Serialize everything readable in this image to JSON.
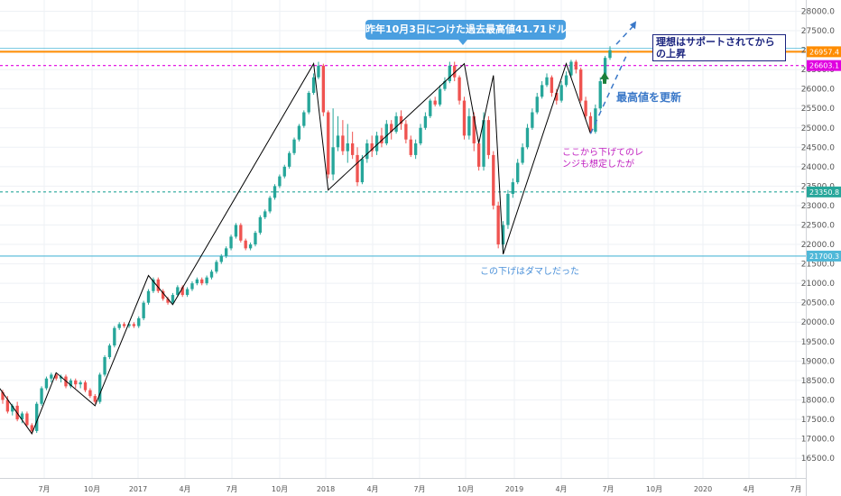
{
  "chart_data": {
    "type": "candlestick",
    "y_axis": {
      "side": "right",
      "range": [
        16200,
        28150
      ],
      "ticks": [
        "28000.0",
        "27500.0",
        "27000.0",
        "26500.0",
        "26000.0",
        "25500.0",
        "25000.0",
        "24500.0",
        "24000.0",
        "23500.0",
        "23000.0",
        "22500.0",
        "22000.0",
        "21500.0",
        "21000.0",
        "20500.0",
        "20000.0",
        "19500.0",
        "19000.0",
        "18500.0",
        "18000.0",
        "17500.0",
        "17000.0",
        "16500.0"
      ]
    },
    "x_axis": {
      "labels": [
        "7月",
        "10月",
        "2017",
        "4月",
        "7月",
        "10月",
        "2018",
        "4月",
        "7月",
        "10月",
        "2019",
        "4月",
        "7月",
        "10月",
        "2020",
        "4月",
        "7月"
      ]
    },
    "candles": [
      [
        18200,
        18000,
        18260,
        17900
      ],
      [
        18000,
        17700,
        18100,
        17650
      ],
      [
        17700,
        17850,
        17900,
        17600
      ],
      [
        17850,
        17500,
        17950,
        17450
      ],
      [
        17500,
        17650,
        17700,
        17400
      ],
      [
        17650,
        17350,
        17700,
        17300
      ],
      [
        17350,
        17200,
        17400,
        17120
      ],
      [
        17200,
        17900,
        17950,
        17150
      ],
      [
        17900,
        18300,
        18350,
        17850
      ],
      [
        18300,
        18550,
        18600,
        18250
      ],
      [
        18550,
        18650,
        18700,
        18450
      ],
      [
        18650,
        18550,
        18700,
        18500
      ],
      [
        18550,
        18600,
        18650,
        18450
      ],
      [
        18600,
        18350,
        18650,
        18300
      ],
      [
        18350,
        18500,
        18550,
        18300
      ],
      [
        18500,
        18400,
        18550,
        18300
      ],
      [
        18400,
        18450,
        18500,
        18300
      ],
      [
        18450,
        18250,
        18500,
        18200
      ],
      [
        18250,
        18100,
        18300,
        18050
      ],
      [
        18100,
        17950,
        18150,
        17900
      ],
      [
        17950,
        18650,
        18700,
        17900
      ],
      [
        18650,
        19100,
        19150,
        18600
      ],
      [
        19100,
        19400,
        19450,
        19050
      ],
      [
        19400,
        19850,
        19900,
        19350
      ],
      [
        19850,
        19950,
        20000,
        19800
      ],
      [
        19950,
        19900,
        20000,
        19850
      ],
      [
        19900,
        19950,
        20000,
        19850
      ],
      [
        19950,
        19900,
        20000,
        19850
      ],
      [
        19900,
        20100,
        20150,
        19850
      ],
      [
        20100,
        20500,
        20550,
        20050
      ],
      [
        20500,
        20800,
        20850,
        20450
      ],
      [
        20800,
        21100,
        21150,
        20750
      ],
      [
        21100,
        20800,
        21150,
        20750
      ],
      [
        20800,
        20600,
        20850,
        20550
      ],
      [
        20600,
        20500,
        20650,
        20450
      ],
      [
        20500,
        20700,
        20750,
        20450
      ],
      [
        20700,
        20900,
        20950,
        20650
      ],
      [
        20900,
        20700,
        20950,
        20650
      ],
      [
        20700,
        20850,
        20900,
        20650
      ],
      [
        20850,
        21000,
        21050,
        20800
      ],
      [
        21000,
        21100,
        21150,
        20950
      ],
      [
        21100,
        21000,
        21150,
        20950
      ],
      [
        21000,
        21150,
        21200,
        20950
      ],
      [
        21150,
        21300,
        21350,
        21100
      ],
      [
        21300,
        21550,
        21600,
        21250
      ],
      [
        21550,
        21700,
        21750,
        21500
      ],
      [
        21700,
        21900,
        21950,
        21650
      ],
      [
        21900,
        22200,
        22250,
        21850
      ],
      [
        22200,
        22500,
        22550,
        22150
      ],
      [
        22500,
        22100,
        22550,
        22050
      ],
      [
        22100,
        21900,
        22150,
        21850
      ],
      [
        21900,
        22000,
        22050,
        21850
      ],
      [
        22000,
        22300,
        22350,
        21950
      ],
      [
        22300,
        22700,
        22750,
        22250
      ],
      [
        22700,
        22850,
        22900,
        22650
      ],
      [
        22850,
        23200,
        23250,
        22800
      ],
      [
        23200,
        23500,
        23550,
        23150
      ],
      [
        23500,
        23750,
        23800,
        23450
      ],
      [
        23750,
        24000,
        24050,
        23700
      ],
      [
        24000,
        24350,
        24400,
        23950
      ],
      [
        24350,
        24700,
        24750,
        24300
      ],
      [
        24700,
        25050,
        25100,
        24650
      ],
      [
        25050,
        25400,
        25450,
        25000
      ],
      [
        25400,
        25900,
        25950,
        25350
      ],
      [
        25900,
        26300,
        26400,
        25850
      ],
      [
        26300,
        26600,
        26700,
        26250
      ],
      [
        26600,
        25400,
        26650,
        25300
      ],
      [
        25400,
        23800,
        25450,
        23700
      ],
      [
        23800,
        24500,
        25500,
        23650
      ],
      [
        24500,
        24800,
        25300,
        24400
      ],
      [
        24800,
        24400,
        25200,
        24300
      ],
      [
        24400,
        24600,
        25100,
        24100
      ],
      [
        24600,
        24300,
        24900,
        24200
      ],
      [
        24300,
        23600,
        24500,
        23500
      ],
      [
        23600,
        24200,
        24300,
        23550
      ],
      [
        24200,
        24600,
        24700,
        24100
      ],
      [
        24600,
        24400,
        24800,
        24250
      ],
      [
        24400,
        24800,
        24900,
        24300
      ],
      [
        24800,
        24600,
        25000,
        24500
      ],
      [
        24600,
        25100,
        25200,
        24550
      ],
      [
        25100,
        24900,
        25200,
        24700
      ],
      [
        24900,
        25300,
        25400,
        24850
      ],
      [
        25300,
        25100,
        25450,
        24950
      ],
      [
        25100,
        24700,
        25200,
        24600
      ],
      [
        24700,
        24300,
        24800,
        24250
      ],
      [
        24300,
        24600,
        24700,
        24200
      ],
      [
        24600,
        25000,
        25100,
        24550
      ],
      [
        25000,
        25300,
        25400,
        24950
      ],
      [
        25300,
        25700,
        25750,
        25250
      ],
      [
        25700,
        25600,
        25800,
        25550
      ],
      [
        25600,
        26000,
        26100,
        25550
      ],
      [
        26000,
        26200,
        26300,
        25950
      ],
      [
        26200,
        26600,
        26700,
        26150
      ],
      [
        26600,
        26300,
        26700,
        26200
      ],
      [
        26300,
        25700,
        26350,
        25600
      ],
      [
        25700,
        24800,
        25800,
        24700
      ],
      [
        24800,
        25300,
        25500,
        24700
      ],
      [
        25300,
        24600,
        25400,
        24400
      ],
      [
        24600,
        24000,
        24700,
        23900
      ],
      [
        24000,
        25200,
        25400,
        23900
      ],
      [
        25200,
        24300,
        25300,
        24200
      ],
      [
        24300,
        23000,
        24400,
        22900
      ],
      [
        23000,
        22000,
        23100,
        21900
      ],
      [
        22000,
        22500,
        22600,
        21800
      ],
      [
        22500,
        23300,
        23400,
        22400
      ],
      [
        23300,
        23600,
        23700,
        23200
      ],
      [
        23600,
        24100,
        24200,
        23550
      ],
      [
        24100,
        24500,
        24600,
        24050
      ],
      [
        24500,
        25000,
        25100,
        24450
      ],
      [
        25000,
        25400,
        25500,
        24950
      ],
      [
        25400,
        25800,
        25900,
        25350
      ],
      [
        25800,
        26100,
        26200,
        25750
      ],
      [
        26100,
        26300,
        26400,
        26050
      ],
      [
        26300,
        25900,
        26350,
        25800
      ],
      [
        25900,
        25700,
        26000,
        25600
      ],
      [
        25700,
        26100,
        26200,
        25650
      ],
      [
        26100,
        26350,
        26450,
        26050
      ],
      [
        26350,
        26700,
        26750,
        26300
      ],
      [
        26700,
        26500,
        26750,
        26400
      ],
      [
        26500,
        25700,
        26550,
        25650
      ],
      [
        25700,
        25300,
        25800,
        25200
      ],
      [
        25300,
        24900,
        25400,
        24850
      ],
      [
        24900,
        25500,
        25600,
        24850
      ],
      [
        25500,
        26200,
        26300,
        25450
      ],
      [
        26200,
        26800,
        26850,
        26150
      ],
      [
        26800,
        27000,
        27100,
        26750
      ]
    ],
    "levels": [
      {
        "label": "26957.4",
        "value": 26957.4,
        "color": "#ff8c00",
        "style": "solid"
      },
      {
        "label": "26603.1",
        "value": 26603.1,
        "color": "#e000e0",
        "style": "dashed"
      },
      {
        "label": "23350.8",
        "value": 23350.8,
        "color": "#26a69a",
        "style": "dashed"
      },
      {
        "label": "21700.3",
        "value": 21700.3,
        "color": "#4fb8d8",
        "style": "solid"
      }
    ],
    "colors": {
      "up": "#26a69a",
      "down": "#ef5350",
      "wave": "#000000",
      "projection": "#3a78c8",
      "grid": "#eef1f5"
    },
    "annotations": {
      "callout": "昨年10月3日につけた過去最高値41.71ドル",
      "ideal": "理想はサポートされてからの上昇",
      "new_high": "最高値を更新",
      "range": "ここから下げてのレンジも想定したが",
      "dama": "この下げはダマしだった"
    }
  }
}
